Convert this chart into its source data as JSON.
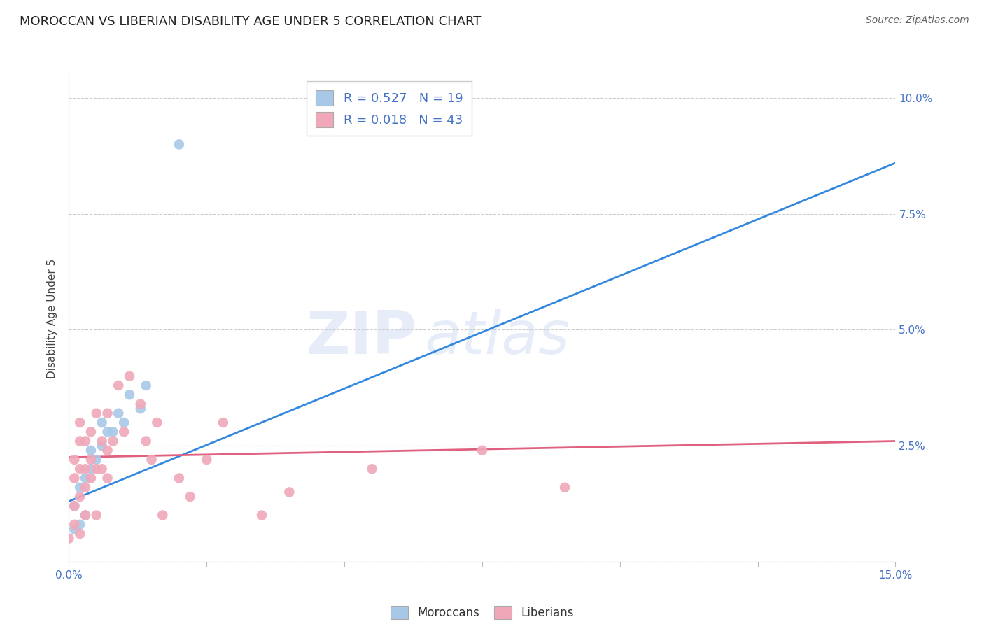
{
  "title": "MOROCCAN VS LIBERIAN DISABILITY AGE UNDER 5 CORRELATION CHART",
  "source": "Source: ZipAtlas.com",
  "ylabel": "Disability Age Under 5",
  "xlim": [
    0.0,
    0.15
  ],
  "ylim": [
    0.0,
    0.105
  ],
  "moroccan_R": 0.527,
  "moroccan_N": 19,
  "liberian_R": 0.018,
  "liberian_N": 43,
  "moroccan_scatter_color": "#a8c8e8",
  "liberian_scatter_color": "#f0a8b8",
  "moroccan_line_color": "#3388dd",
  "liberian_line_color": "#e06080",
  "moroccan_line_x0": 0.0,
  "moroccan_line_y0": 0.013,
  "moroccan_line_x1": 0.15,
  "moroccan_line_y1": 0.086,
  "liberian_line_x0": 0.0,
  "liberian_line_y0": 0.0225,
  "liberian_line_x1": 0.15,
  "liberian_line_y1": 0.026,
  "moroccan_x": [
    0.001,
    0.001,
    0.002,
    0.002,
    0.003,
    0.003,
    0.004,
    0.004,
    0.005,
    0.006,
    0.006,
    0.007,
    0.008,
    0.009,
    0.01,
    0.011,
    0.013,
    0.014,
    0.02
  ],
  "moroccan_y": [
    0.007,
    0.012,
    0.008,
    0.016,
    0.01,
    0.018,
    0.02,
    0.024,
    0.022,
    0.025,
    0.03,
    0.028,
    0.028,
    0.032,
    0.03,
    0.036,
    0.033,
    0.038,
    0.09
  ],
  "liberian_x": [
    0.0,
    0.001,
    0.001,
    0.001,
    0.001,
    0.002,
    0.002,
    0.002,
    0.002,
    0.002,
    0.003,
    0.003,
    0.003,
    0.003,
    0.004,
    0.004,
    0.004,
    0.005,
    0.005,
    0.005,
    0.006,
    0.006,
    0.007,
    0.007,
    0.007,
    0.008,
    0.009,
    0.01,
    0.011,
    0.013,
    0.014,
    0.015,
    0.016,
    0.017,
    0.02,
    0.022,
    0.025,
    0.028,
    0.035,
    0.04,
    0.055,
    0.075,
    0.09
  ],
  "liberian_y": [
    0.005,
    0.008,
    0.012,
    0.018,
    0.022,
    0.006,
    0.014,
    0.02,
    0.026,
    0.03,
    0.01,
    0.016,
    0.02,
    0.026,
    0.018,
    0.022,
    0.028,
    0.01,
    0.02,
    0.032,
    0.02,
    0.026,
    0.018,
    0.024,
    0.032,
    0.026,
    0.038,
    0.028,
    0.04,
    0.034,
    0.026,
    0.022,
    0.03,
    0.01,
    0.018,
    0.014,
    0.022,
    0.03,
    0.01,
    0.015,
    0.02,
    0.024,
    0.016
  ],
  "watermark_zip": "ZIP",
  "watermark_atlas": "atlas",
  "background_color": "#ffffff",
  "grid_color": "#cccccc",
  "title_color": "#222222",
  "source_color": "#666666",
  "axis_tick_color": "#4472c4",
  "ylabel_color": "#444444",
  "legend_label_color": "#4472c4",
  "scatter_size": 110
}
